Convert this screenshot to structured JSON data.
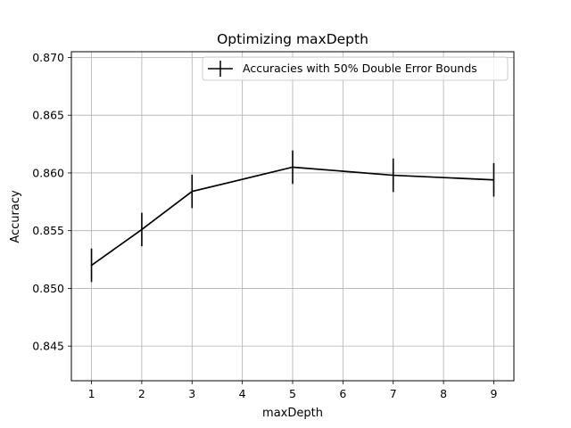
{
  "chart_data": {
    "type": "line",
    "title": "Optimizing maxDepth",
    "xlabel": "maxDepth",
    "ylabel": "Accuracy",
    "xlim": [
      0.6,
      9.4
    ],
    "ylim": [
      0.842,
      0.8705
    ],
    "xticks": [
      1,
      2,
      3,
      4,
      5,
      6,
      7,
      8,
      9
    ],
    "yticks": [
      0.845,
      0.85,
      0.855,
      0.86,
      0.865,
      0.87
    ],
    "ytick_labels": [
      "0.845",
      "0.850",
      "0.855",
      "0.860",
      "0.865",
      "0.870"
    ],
    "grid": true,
    "legend_position": "top-right",
    "series": [
      {
        "name": "Accuracies with 50% Double Error Bounds",
        "color": "#000000",
        "x": [
          1,
          2,
          3,
          5,
          7,
          9
        ],
        "y": [
          0.852,
          0.8551,
          0.8584,
          0.8605,
          0.8598,
          0.8594
        ],
        "error": [
          0.00145,
          0.00145,
          0.00145,
          0.00145,
          0.00145,
          0.00145
        ]
      }
    ]
  }
}
